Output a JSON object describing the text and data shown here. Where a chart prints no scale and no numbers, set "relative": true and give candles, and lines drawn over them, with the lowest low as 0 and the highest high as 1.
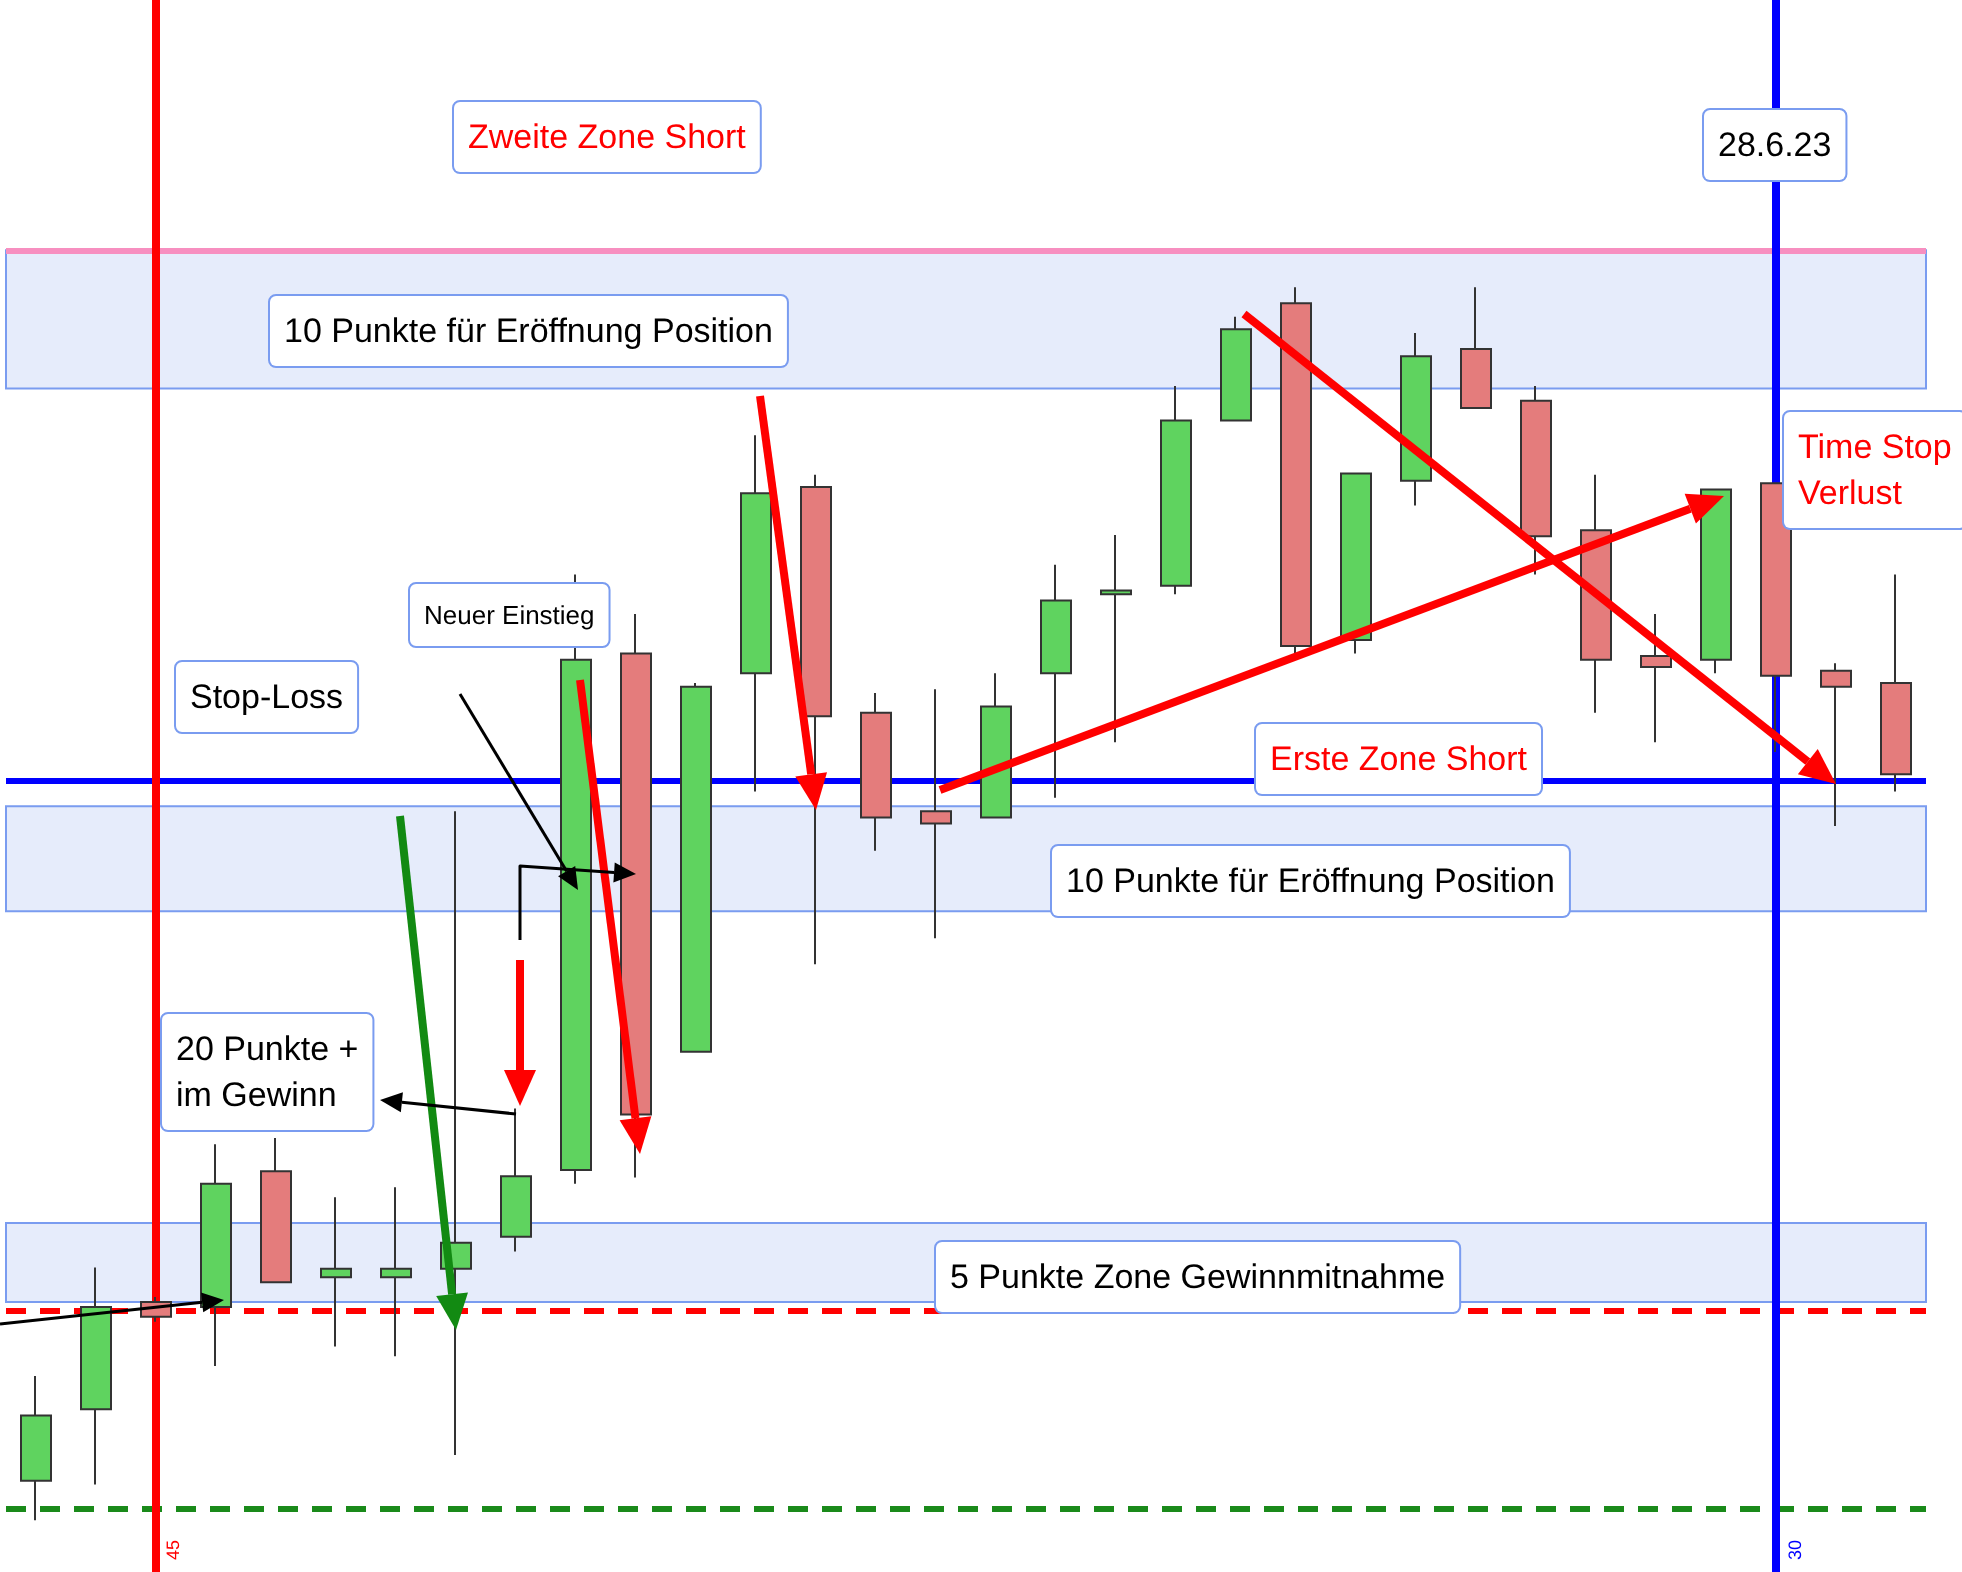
{
  "chart_data": {
    "type": "candlestick",
    "relative": true,
    "categories": [
      null,
      null,
      null,
      null,
      null,
      null,
      null,
      null,
      null,
      null,
      null,
      null,
      null,
      null,
      null,
      null,
      null,
      null,
      null,
      null,
      null,
      null,
      null,
      null,
      null,
      null,
      null,
      null,
      null,
      null,
      null,
      null
    ],
    "ohlc": [
      [
        0.032,
        0.117,
        0,
        0.085
      ],
      [
        0.09,
        0.205,
        0.029,
        0.173
      ],
      [
        0.177,
        0.181,
        0.161,
        0.165
      ],
      [
        0.173,
        0.305,
        0.125,
        0.273
      ],
      [
        0.283,
        0.31,
        0.193,
        0.193
      ],
      [
        0.197,
        0.262,
        0.141,
        0.204
      ],
      [
        0.197,
        0.27,
        0.133,
        0.204
      ],
      [
        0.204,
        0.575,
        0.053,
        0.225
      ],
      [
        0.23,
        0.334,
        0.218,
        0.279
      ],
      [
        0.284,
        0.767,
        0.273,
        0.698
      ],
      [
        0.703,
        0.735,
        0.278,
        0.329
      ],
      [
        0.38,
        0.679,
        0.38,
        0.676
      ],
      [
        0.687,
        0.88,
        0.591,
        0.833
      ],
      [
        0.838,
        0.848,
        0.451,
        0.652
      ],
      [
        0.655,
        0.671,
        0.543,
        0.57
      ],
      [
        0.575,
        0.674,
        0.472,
        0.565
      ],
      [
        0.57,
        0.687,
        0.57,
        0.66
      ],
      [
        0.687,
        0.775,
        0.586,
        0.746
      ],
      [
        0.751,
        0.799,
        0.631,
        0.754
      ],
      [
        0.758,
        0.92,
        0.751,
        0.892
      ],
      [
        0.892,
        0.976,
        0.892,
        0.966
      ],
      [
        0.987,
        1,
        0.703,
        0.709
      ],
      [
        0.714,
        0.849,
        0.703,
        0.849
      ],
      [
        0.843,
        0.963,
        0.823,
        0.944
      ],
      [
        0.95,
        1,
        0.902,
        0.902
      ],
      [
        0.908,
        0.92,
        0.767,
        0.798
      ],
      [
        0.803,
        0.848,
        0.655,
        0.698
      ],
      [
        0.701,
        0.735,
        0.631,
        0.692
      ],
      [
        0.698,
        0.836,
        0.687,
        0.836
      ],
      [
        0.841,
        0.841,
        0.623,
        0.685
      ],
      [
        0.689,
        0.695,
        0.563,
        0.676
      ],
      [
        0.679,
        0.767,
        0.591,
        0.605
      ]
    ],
    "colors": [
      "#5fd35f",
      "#5fd35f",
      "#e47c7c",
      "#5fd35f",
      "#e47c7c",
      "#5fd35f",
      "#5fd35f",
      "#5fd35f",
      "#5fd35f",
      "#5fd35f",
      "#e47c7c",
      "#5fd35f",
      "#5fd35f",
      "#e47c7c",
      "#e47c7c",
      "#e47c7c",
      "#5fd35f",
      "#5fd35f",
      "#5fd35f",
      "#5fd35f",
      "#5fd35f",
      "#e47c7c",
      "#5fd35f",
      "#5fd35f",
      "#e47c7c",
      "#e47c7c",
      "#e47c7c",
      "#e47c7c",
      "#5fd35f",
      "#e47c7c",
      "#e47c7c",
      "#e47c7c"
    ],
    "ref_lines": [
      {
        "axis": "y",
        "value": 1.03,
        "color": "#f78fc0",
        "line_style": "solid"
      },
      {
        "axis": "y",
        "value": 0.602,
        "color": "#0000ff",
        "line_style": "solid"
      },
      {
        "axis": "y",
        "value": 0.173,
        "color": "#ff0000",
        "line_style": "dashed"
      },
      {
        "axis": "y",
        "value": 0.01,
        "color": "#1a8a1a",
        "line_style": "dashed"
      }
    ],
    "bands": [
      {
        "axis": "y",
        "from": 0.918,
        "to": 1.03,
        "color": "#e6ecfb"
      },
      {
        "axis": "y",
        "from": 0.494,
        "to": 0.579,
        "color": "#e6ecfb"
      },
      {
        "axis": "y",
        "from": 0.177,
        "to": 0.241,
        "color": "#e6ecfb"
      }
    ],
    "annotations": [
      "Zweite Zone Short",
      "28.6.23",
      "10 Punkte für Eröffnung Position",
      "Time Stop\nVerlust",
      "Neuer Einstieg",
      "Stop-Loss",
      "Erste Zone Short",
      "10 Punkte für Eröffnung Position",
      "20 Punkte +\nim Gewinn",
      "5 Punkte Zone Gewinnmitnahme",
      "45",
      "30"
    ],
    "grid": false
  }
}
